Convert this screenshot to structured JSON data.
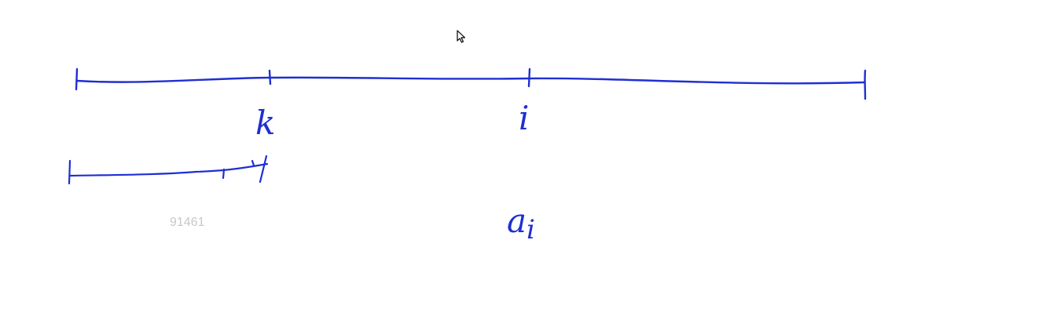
{
  "colors": {
    "ink": "#1f2fd2",
    "watermark": "#c8c8c8",
    "cursor_fill": "#ffffff",
    "cursor_stroke": "#000000"
  },
  "labels": {
    "k": "k",
    "i": "i",
    "a_i": "a",
    "a_i_subscript": "i"
  },
  "watermark": {
    "text": "91461"
  },
  "icons": {
    "cursor": "mouse-pointer-icon"
  }
}
